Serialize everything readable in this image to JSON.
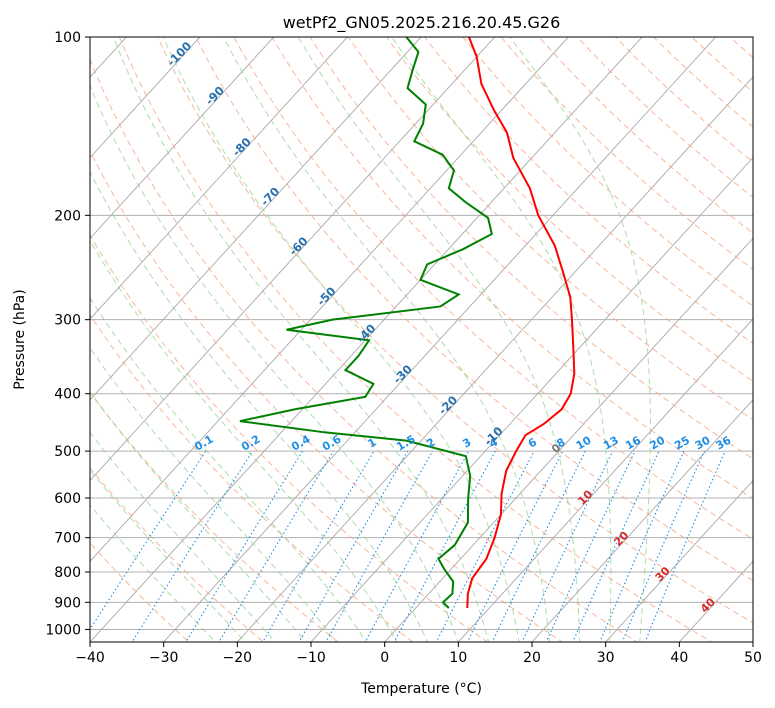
{
  "chart_data": {
    "type": "skew-t log-p",
    "title": "wetPf2_GN05.2025.216.20.45.G26",
    "xlabel": "Temperature (°C)",
    "ylabel": "Pressure (hPa)",
    "xlim": [
      -40,
      50
    ],
    "ylim": [
      1050,
      100
    ],
    "log_pressure": true,
    "grid": true,
    "x_ticks": [
      -40,
      -30,
      -20,
      -10,
      0,
      10,
      20,
      30,
      40,
      50
    ],
    "y_ticks": [
      100,
      200,
      300,
      400,
      500,
      600,
      700,
      800,
      900,
      1000
    ],
    "colors": {
      "temperature": "#ff0000",
      "dewpoint": "#008000",
      "isotherm": "#a9a9a9",
      "dry_adiabat": "#f4a582",
      "moist_adiabat": "#8fd18f",
      "mixing_ratio": "#1f8fe6",
      "wetbulb_0_label": "#777777",
      "wetbulb_label": "#d62728",
      "temp_label": "#2a6fb0"
    },
    "temperature_profile": [
      {
        "p": 920,
        "t": 7.0
      },
      {
        "p": 870,
        "t": 5.3
      },
      {
        "p": 820,
        "t": 4.0
      },
      {
        "p": 760,
        "t": 3.5
      },
      {
        "p": 700,
        "t": 2.0
      },
      {
        "p": 640,
        "t": 0.0
      },
      {
        "p": 590,
        "t": -2.5
      },
      {
        "p": 540,
        "t": -4.7
      },
      {
        "p": 500,
        "t": -5.8
      },
      {
        "p": 470,
        "t": -6.5
      },
      {
        "p": 450,
        "t": -5.4
      },
      {
        "p": 425,
        "t": -4.8
      },
      {
        "p": 400,
        "t": -5.5
      },
      {
        "p": 370,
        "t": -7.5
      },
      {
        "p": 335,
        "t": -10.8
      },
      {
        "p": 300,
        "t": -14.5
      },
      {
        "p": 275,
        "t": -17.5
      },
      {
        "p": 250,
        "t": -21.5
      },
      {
        "p": 225,
        "t": -26.0
      },
      {
        "p": 200,
        "t": -32.0
      },
      {
        "p": 180,
        "t": -36.5
      },
      {
        "p": 160,
        "t": -42.5
      },
      {
        "p": 145,
        "t": -46.5
      },
      {
        "p": 133,
        "t": -51.0
      },
      {
        "p": 120,
        "t": -56.0
      },
      {
        "p": 108,
        "t": -60.0
      },
      {
        "p": 100,
        "t": -63.5
      }
    ],
    "dewpoint_profile": [
      {
        "p": 920,
        "t": 4.5
      },
      {
        "p": 900,
        "t": 3.0
      },
      {
        "p": 870,
        "t": 3.2
      },
      {
        "p": 830,
        "t": 1.8
      },
      {
        "p": 790,
        "t": -1.0
      },
      {
        "p": 760,
        "t": -3.0
      },
      {
        "p": 720,
        "t": -2.5
      },
      {
        "p": 660,
        "t": -3.5
      },
      {
        "p": 600,
        "t": -6.5
      },
      {
        "p": 550,
        "t": -9.0
      },
      {
        "p": 510,
        "t": -12.0
      },
      {
        "p": 480,
        "t": -22.0
      },
      {
        "p": 465,
        "t": -34.0
      },
      {
        "p": 445,
        "t": -47.0
      },
      {
        "p": 425,
        "t": -41.0
      },
      {
        "p": 405,
        "t": -33.0
      },
      {
        "p": 385,
        "t": -33.5
      },
      {
        "p": 365,
        "t": -39.0
      },
      {
        "p": 345,
        "t": -39.0
      },
      {
        "p": 325,
        "t": -39.5
      },
      {
        "p": 312,
        "t": -52.0
      },
      {
        "p": 300,
        "t": -47.0
      },
      {
        "p": 285,
        "t": -34.0
      },
      {
        "p": 272,
        "t": -33.0
      },
      {
        "p": 257,
        "t": -40.0
      },
      {
        "p": 242,
        "t": -41.0
      },
      {
        "p": 228,
        "t": -38.0
      },
      {
        "p": 215,
        "t": -36.0
      },
      {
        "p": 202,
        "t": -38.5
      },
      {
        "p": 190,
        "t": -43.5
      },
      {
        "p": 180,
        "t": -47.5
      },
      {
        "p": 168,
        "t": -49.0
      },
      {
        "p": 158,
        "t": -52.5
      },
      {
        "p": 150,
        "t": -58.0
      },
      {
        "p": 140,
        "t": -59.0
      },
      {
        "p": 130,
        "t": -61.0
      },
      {
        "p": 122,
        "t": -65.5
      },
      {
        "p": 114,
        "t": -67.0
      },
      {
        "p": 106,
        "t": -68.5
      },
      {
        "p": 100,
        "t": -72.0
      }
    ],
    "mixing_ratio_labels": [
      "0.1",
      "0.2",
      "0.4",
      "0.6",
      "1",
      "1.5",
      "2",
      "3",
      "4",
      "6",
      "8",
      "10",
      "13",
      "16",
      "20",
      "25",
      "30",
      "36"
    ],
    "mixing_ratio_values": [
      0.1,
      0.2,
      0.4,
      0.6,
      1,
      1.5,
      2,
      3,
      4,
      6,
      8,
      10,
      13,
      16,
      20,
      25,
      30,
      36
    ],
    "wetbulb_labels": [
      {
        "text": "0",
        "value": 0
      },
      {
        "text": "10",
        "value": 10
      },
      {
        "text": "20",
        "value": 20
      },
      {
        "text": "30",
        "value": 30
      },
      {
        "text": "40",
        "value": 40
      }
    ],
    "temperature_labels": [
      {
        "text": "-100",
        "p": 108
      },
      {
        "text": "-90",
        "p": 127
      },
      {
        "text": "-80",
        "p": 155
      },
      {
        "text": "-70",
        "p": 188
      },
      {
        "text": "-60",
        "p": 228
      },
      {
        "text": "-50",
        "p": 277
      },
      {
        "text": "-40",
        "p": 320
      },
      {
        "text": "-30",
        "p": 375
      },
      {
        "text": "-20",
        "p": 423
      },
      {
        "text": "-10",
        "p": 477
      }
    ]
  }
}
